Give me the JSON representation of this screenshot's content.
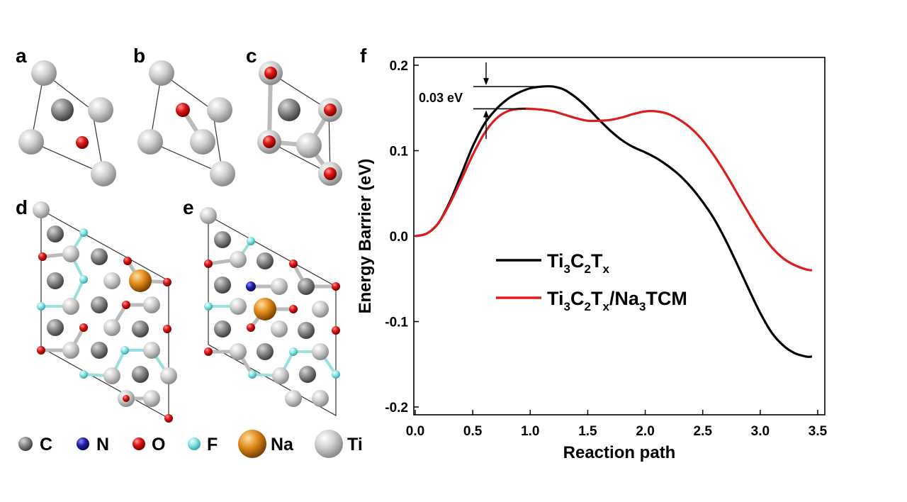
{
  "panels": {
    "a": "a",
    "b": "b",
    "c": "c",
    "d": "d",
    "e": "e",
    "f": "f"
  },
  "atom_legend": [
    {
      "symbol": "C",
      "color": "#8c8c8c"
    },
    {
      "symbol": "N",
      "color": "#1c1c9c"
    },
    {
      "symbol": "O",
      "color": "#dd1515"
    },
    {
      "symbol": "F",
      "color": "#7fdede"
    },
    {
      "symbol": "Na",
      "color": "#e08a1a"
    },
    {
      "symbol": "Ti",
      "color": "#c9c9c9"
    }
  ],
  "chart_data": {
    "type": "line",
    "xlabel": "Reaction path",
    "ylabel": "Energy Barrier (eV)",
    "xlim": [
      0.0,
      3.5
    ],
    "ylim": [
      -0.21,
      0.21
    ],
    "xticks": [
      "0.0",
      "0.5",
      "1.0",
      "1.5",
      "2.0",
      "2.5",
      "3.0",
      "3.5"
    ],
    "yticks": [
      "0.2",
      "0.1",
      "0.0",
      "-0.1",
      "-0.2"
    ],
    "legend_position": "center",
    "annotation": "0.03 eV",
    "series": [
      {
        "name_parts": [
          [
            "Ti",
            ""
          ],
          [
            "3",
            "sub"
          ],
          [
            "C",
            ""
          ],
          [
            "2",
            "sub"
          ],
          [
            "T",
            ""
          ],
          [
            "x",
            "sub"
          ]
        ],
        "color": "#000000",
        "points": [
          [
            0.0,
            0.0
          ],
          [
            0.1,
            0.003
          ],
          [
            0.2,
            0.015
          ],
          [
            0.3,
            0.04
          ],
          [
            0.4,
            0.072
          ],
          [
            0.5,
            0.105
          ],
          [
            0.6,
            0.131
          ],
          [
            0.7,
            0.148
          ],
          [
            0.8,
            0.16
          ],
          [
            0.9,
            0.168
          ],
          [
            1.0,
            0.173
          ],
          [
            1.1,
            0.175
          ],
          [
            1.2,
            0.175
          ],
          [
            1.3,
            0.171
          ],
          [
            1.4,
            0.162
          ],
          [
            1.5,
            0.15
          ],
          [
            1.6,
            0.136
          ],
          [
            1.7,
            0.123
          ],
          [
            1.8,
            0.112
          ],
          [
            1.9,
            0.104
          ],
          [
            2.0,
            0.098
          ],
          [
            2.1,
            0.091
          ],
          [
            2.2,
            0.082
          ],
          [
            2.3,
            0.071
          ],
          [
            2.4,
            0.057
          ],
          [
            2.5,
            0.04
          ],
          [
            2.6,
            0.02
          ],
          [
            2.7,
            -0.005
          ],
          [
            2.8,
            -0.033
          ],
          [
            2.9,
            -0.062
          ],
          [
            3.0,
            -0.09
          ],
          [
            3.1,
            -0.113
          ],
          [
            3.2,
            -0.128
          ],
          [
            3.3,
            -0.137
          ],
          [
            3.4,
            -0.141
          ],
          [
            3.45,
            -0.141
          ]
        ]
      },
      {
        "name_parts": [
          [
            "Ti",
            ""
          ],
          [
            "3",
            "sub"
          ],
          [
            "C",
            ""
          ],
          [
            "2",
            "sub"
          ],
          [
            "T",
            ""
          ],
          [
            "x",
            "sub"
          ],
          [
            "/Na",
            ""
          ],
          [
            "3",
            "sub"
          ],
          [
            "TCM",
            ""
          ]
        ],
        "color": "#dd1c1c",
        "points": [
          [
            0.0,
            0.0
          ],
          [
            0.1,
            0.003
          ],
          [
            0.2,
            0.015
          ],
          [
            0.3,
            0.038
          ],
          [
            0.4,
            0.066
          ],
          [
            0.5,
            0.095
          ],
          [
            0.6,
            0.12
          ],
          [
            0.7,
            0.137
          ],
          [
            0.8,
            0.146
          ],
          [
            0.9,
            0.149
          ],
          [
            1.0,
            0.149
          ],
          [
            1.1,
            0.148
          ],
          [
            1.2,
            0.146
          ],
          [
            1.3,
            0.142
          ],
          [
            1.4,
            0.138
          ],
          [
            1.5,
            0.135
          ],
          [
            1.6,
            0.135
          ],
          [
            1.7,
            0.136
          ],
          [
            1.8,
            0.139
          ],
          [
            1.9,
            0.143
          ],
          [
            2.0,
            0.146
          ],
          [
            2.1,
            0.146
          ],
          [
            2.2,
            0.143
          ],
          [
            2.3,
            0.136
          ],
          [
            2.4,
            0.126
          ],
          [
            2.5,
            0.112
          ],
          [
            2.6,
            0.094
          ],
          [
            2.7,
            0.073
          ],
          [
            2.8,
            0.05
          ],
          [
            2.9,
            0.027
          ],
          [
            3.0,
            0.005
          ],
          [
            3.1,
            -0.013
          ],
          [
            3.2,
            -0.026
          ],
          [
            3.3,
            -0.034
          ],
          [
            3.4,
            -0.039
          ],
          [
            3.45,
            -0.04
          ]
        ]
      }
    ]
  }
}
